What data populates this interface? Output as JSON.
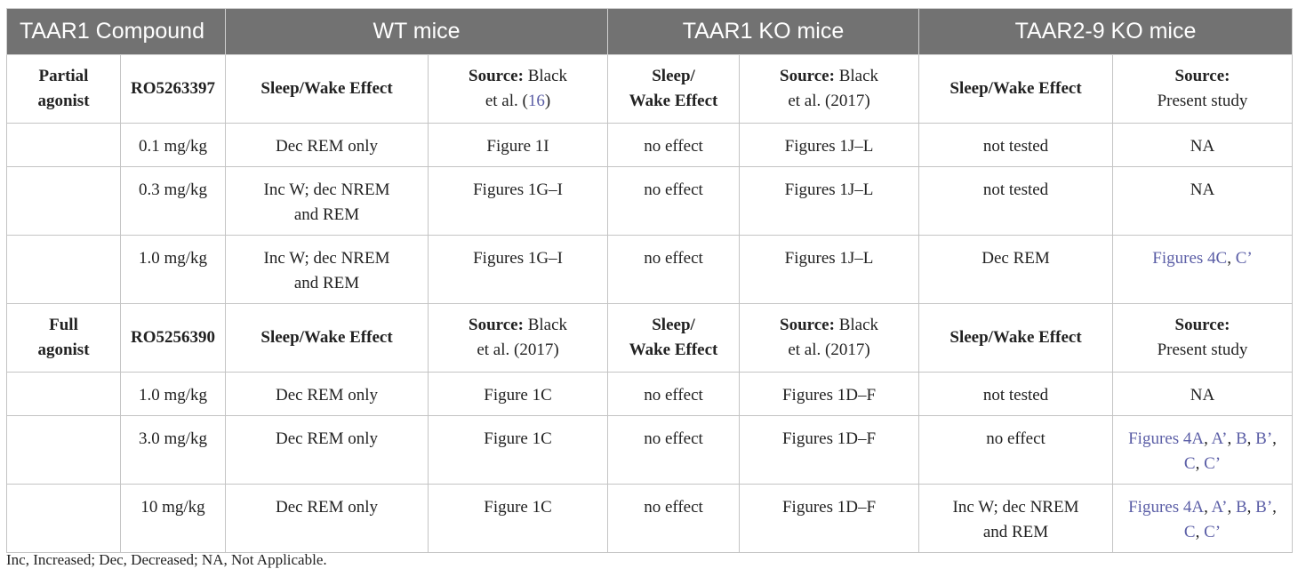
{
  "header": {
    "col1": "TAAR1 Compound",
    "col2": "WT mice",
    "col3": "TAAR1 KO mice",
    "col4": "TAAR2-9 KO mice"
  },
  "partial": {
    "group_line1": "Partial",
    "group_line2": "agonist",
    "compound": "RO5263397",
    "wt_effect": "Sleep/Wake Effect",
    "wt_source_label": "Source:",
    "wt_source_text1": " Black",
    "wt_source_text2": "et al. (",
    "wt_source_ref": "16",
    "wt_source_close": ")",
    "ko1_effect_line1": "Sleep/",
    "ko1_effect_line2": "Wake Effect",
    "ko1_source_label": "Source:",
    "ko1_source_text1": " Black",
    "ko1_source_text2": "et al. (2017)",
    "ko2_effect": "Sleep/Wake Effect",
    "ko2_source_label": "Source:",
    "ko2_source_text": "Present study",
    "rows": [
      {
        "dose": "0.1 mg/kg",
        "wt_effect": "Dec REM only",
        "wt_src": "Figure 1I",
        "ko1_effect": "no effect",
        "ko1_src": "Figures 1J–L",
        "ko2_effect": "not tested",
        "ko2_src": "NA"
      },
      {
        "dose": "0.3 mg/kg",
        "wt_effect_line1": "Inc W; dec NREM",
        "wt_effect_line2": "and REM",
        "wt_src": "Figures 1G–I",
        "ko1_effect": "no effect",
        "ko1_src": "Figures 1J–L",
        "ko2_effect": "not tested",
        "ko2_src": "NA"
      },
      {
        "dose": "1.0 mg/kg",
        "wt_effect_line1": "Inc W; dec NREM",
        "wt_effect_line2": "and REM",
        "wt_src": "Figures 1G–I",
        "ko1_effect": "no effect",
        "ko1_src": "Figures 1J–L",
        "ko2_effect": "Dec REM",
        "ko2_src_a": "Figures 4C",
        "ko2_src_sep": ", ",
        "ko2_src_b": "C’"
      }
    ]
  },
  "full": {
    "group_line1": "Full",
    "group_line2": "agonist",
    "compound": "RO5256390",
    "wt_effect": "Sleep/Wake Effect",
    "wt_source_label": "Source:",
    "wt_source_text1": " Black",
    "wt_source_text2": "et al. (2017)",
    "ko1_effect_line1": "Sleep/",
    "ko1_effect_line2": "Wake Effect",
    "ko1_source_label": "Source:",
    "ko1_source_text1": " Black",
    "ko1_source_text2": "et al. (2017)",
    "ko2_effect": "Sleep/Wake Effect",
    "ko2_source_label": "Source:",
    "ko2_source_text": "Present study",
    "rows": [
      {
        "dose": "1.0 mg/kg",
        "wt_effect": "Dec REM only",
        "wt_src": "Figure 1C",
        "ko1_effect": "no effect",
        "ko1_src": "Figures 1D–F",
        "ko2_effect": "not tested",
        "ko2_src": "NA"
      },
      {
        "dose": "3.0 mg/kg",
        "wt_effect": "Dec REM only",
        "wt_src": "Figure 1C",
        "ko1_effect": "no effect",
        "ko1_src": "Figures 1D–F",
        "ko2_effect": "no effect"
      },
      {
        "dose": "10 mg/kg",
        "wt_effect": "Dec REM only",
        "wt_src": "Figure 1C",
        "ko1_effect": "no effect",
        "ko1_src": "Figures 1D–F",
        "ko2_effect_line1": "Inc W; dec NREM",
        "ko2_effect_line2": "and REM"
      }
    ],
    "fig_links": {
      "a": "Figures 4A",
      "b": "A’",
      "c": "B",
      "d": "B’",
      "e": "C",
      "f": "C’",
      "sep": ", ",
      "trail": ","
    }
  },
  "footnote": "Inc, Increased; Dec, Decreased; NA, Not Applicable.",
  "colors": {
    "header_bg": "#727272",
    "link": "#5b5ea6",
    "border": "#c4c4c4"
  }
}
